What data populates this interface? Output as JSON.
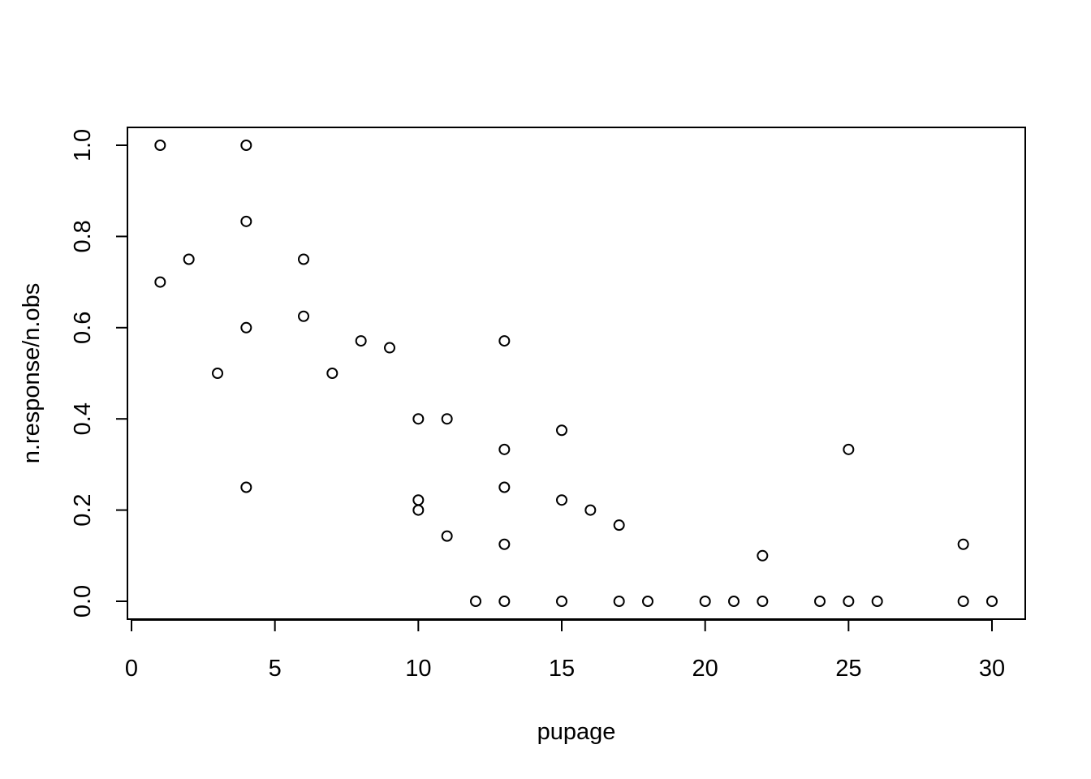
{
  "chart_data": {
    "type": "scatter",
    "title": "",
    "xlabel": "pupage",
    "ylabel": "n.response/n.obs",
    "xlim": [
      0,
      30
    ],
    "ylim": [
      0,
      1
    ],
    "x_ticks": [
      "0",
      "5",
      "10",
      "15",
      "20",
      "25",
      "30"
    ],
    "y_ticks": [
      "0.0",
      "0.2",
      "0.4",
      "0.6",
      "0.8",
      "1.0"
    ],
    "grid": false,
    "legend": "none",
    "marker": "open-circle",
    "color": "#000000",
    "points": [
      {
        "x": 1,
        "y": 1.0
      },
      {
        "x": 1,
        "y": 0.7
      },
      {
        "x": 2,
        "y": 0.75
      },
      {
        "x": 3,
        "y": 0.5
      },
      {
        "x": 4,
        "y": 1.0
      },
      {
        "x": 4,
        "y": 0.833
      },
      {
        "x": 4,
        "y": 0.6
      },
      {
        "x": 4,
        "y": 0.25
      },
      {
        "x": 6,
        "y": 0.75
      },
      {
        "x": 6,
        "y": 0.625
      },
      {
        "x": 7,
        "y": 0.5
      },
      {
        "x": 8,
        "y": 0.571
      },
      {
        "x": 9,
        "y": 0.556
      },
      {
        "x": 10,
        "y": 0.4
      },
      {
        "x": 10,
        "y": 0.222
      },
      {
        "x": 10,
        "y": 0.2
      },
      {
        "x": 11,
        "y": 0.4
      },
      {
        "x": 11,
        "y": 0.143
      },
      {
        "x": 12,
        "y": 0.0
      },
      {
        "x": 13,
        "y": 0.571
      },
      {
        "x": 13,
        "y": 0.333
      },
      {
        "x": 13,
        "y": 0.25
      },
      {
        "x": 13,
        "y": 0.125
      },
      {
        "x": 13,
        "y": 0.0
      },
      {
        "x": 15,
        "y": 0.375
      },
      {
        "x": 15,
        "y": 0.222
      },
      {
        "x": 15,
        "y": 0.0
      },
      {
        "x": 16,
        "y": 0.2
      },
      {
        "x": 17,
        "y": 0.167
      },
      {
        "x": 17,
        "y": 0.0
      },
      {
        "x": 18,
        "y": 0.0
      },
      {
        "x": 20,
        "y": 0.0
      },
      {
        "x": 21,
        "y": 0.0
      },
      {
        "x": 22,
        "y": 0.1
      },
      {
        "x": 22,
        "y": 0.0
      },
      {
        "x": 24,
        "y": 0.0
      },
      {
        "x": 25,
        "y": 0.333
      },
      {
        "x": 25,
        "y": 0.0
      },
      {
        "x": 26,
        "y": 0.0
      },
      {
        "x": 29,
        "y": 0.125
      },
      {
        "x": 29,
        "y": 0.0
      },
      {
        "x": 30,
        "y": 0.0
      }
    ]
  }
}
